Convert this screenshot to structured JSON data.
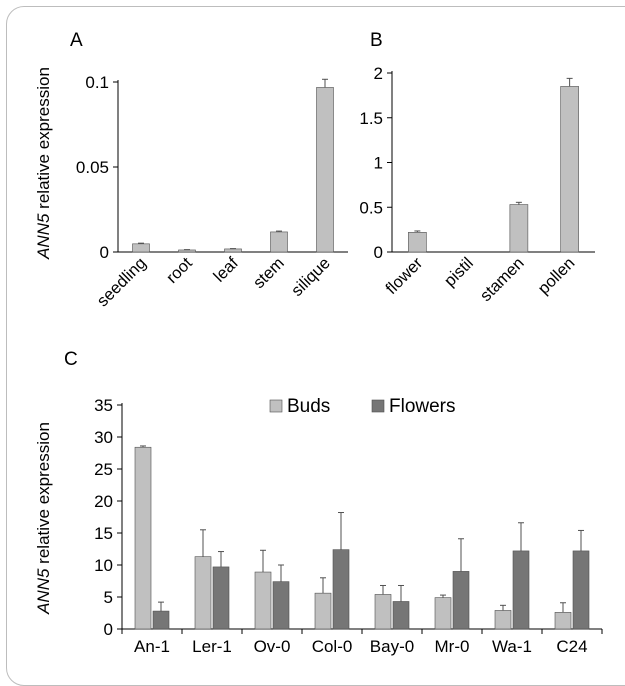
{
  "y_label": {
    "gene": "ANN5",
    "rest": " relative expression"
  },
  "chart_data": [
    {
      "panel": "A",
      "type": "bar",
      "categories": [
        "seedling",
        "root",
        "leaf",
        "stem",
        "silique"
      ],
      "values": [
        0.0048,
        0.0012,
        0.0018,
        0.0118,
        0.0968
      ],
      "errors": [
        0.0004,
        0.0002,
        0.0002,
        0.0005,
        0.0048
      ],
      "ylim": [
        0,
        0.1
      ],
      "yticks": [
        "0",
        "0.05",
        "0.1"
      ],
      "ytick_values": [
        0,
        0.05,
        0.1
      ],
      "ylabel": "ANN5 relative expression",
      "grid": false,
      "colors": {
        "bar": "#c0c0c0"
      }
    },
    {
      "panel": "B",
      "type": "bar",
      "categories": [
        "flower",
        "pistil",
        "stamen",
        "pollen"
      ],
      "values": [
        0.22,
        0,
        0.53,
        1.85
      ],
      "errors": [
        0.015,
        0,
        0.025,
        0.09
      ],
      "ylim": [
        0,
        2
      ],
      "yticks": [
        "0",
        "0.5",
        "1",
        "1.5",
        "2"
      ],
      "ytick_values": [
        0,
        0.5,
        1,
        1.5,
        2
      ],
      "grid": false,
      "colors": {
        "bar": "#c0c0c0"
      }
    },
    {
      "panel": "C",
      "type": "bar",
      "categories": [
        "An-1",
        "Ler-1",
        "Ov-0",
        "Col-0",
        "Bay-0",
        "Mr-0",
        "Wa-1",
        "C24"
      ],
      "series": [
        {
          "name": "Buds",
          "values": [
            28.4,
            11.3,
            8.9,
            5.6,
            5.4,
            4.9,
            2.9,
            2.6
          ],
          "errors": [
            0.2,
            4.2,
            3.4,
            2.4,
            1.4,
            0.4,
            0.8,
            1.5
          ],
          "color": "#c0c0c0"
        },
        {
          "name": "Flowers",
          "values": [
            2.8,
            9.7,
            7.4,
            12.4,
            4.3,
            9.0,
            12.2,
            12.2
          ],
          "errors": [
            1.4,
            2.4,
            2.6,
            5.8,
            2.5,
            5.1,
            4.4,
            3.2
          ],
          "color": "#767676"
        }
      ],
      "ylim": [
        0,
        35
      ],
      "yticks": [
        "0",
        "5",
        "10",
        "15",
        "20",
        "25",
        "30",
        "35"
      ],
      "ytick_values": [
        0,
        5,
        10,
        15,
        20,
        25,
        30,
        35
      ],
      "ylabel": "ANN5 relative expression",
      "legend": "top",
      "grid": false
    }
  ]
}
